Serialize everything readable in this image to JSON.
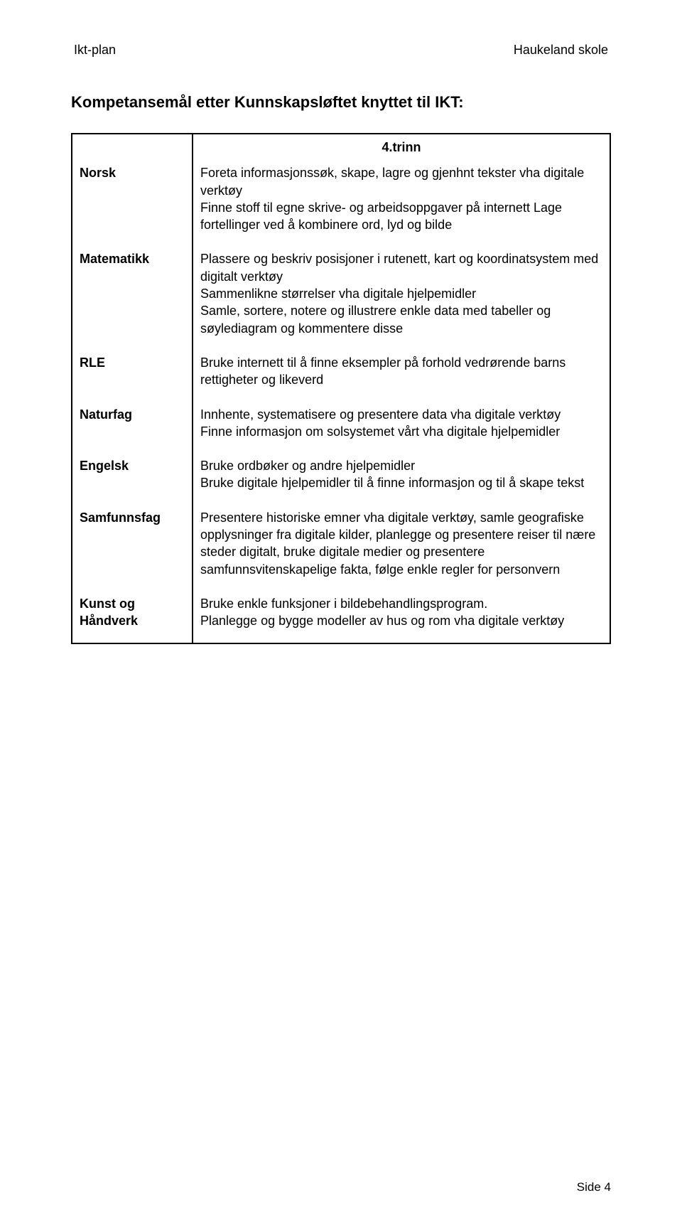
{
  "header": {
    "left": "Ikt-plan",
    "right": "Haukeland skole"
  },
  "section_title": "Kompetansemål etter Kunnskapsløftet knyttet til IKT:",
  "trinn_label": "4.trinn",
  "rows": [
    {
      "label": "Norsk",
      "content": "Foreta informasjonssøk, skape, lagre og gjenhnt tekster vha digitale verktøy\nFinne stoff til egne skrive- og arbeidsoppgaver på internett Lage fortellinger ved å kombinere ord, lyd og bilde"
    },
    {
      "label": "Matematikk",
      "content": "Plassere og beskriv posisjoner i rutenett, kart og koordinatsystem med digitalt verktøy\nSammenlikne størrelser vha digitale hjelpemidler\nSamle, sortere, notere og illustrere enkle data med tabeller og søylediagram og kommentere disse"
    },
    {
      "label": "RLE",
      "content": "Bruke internett til å finne eksempler på forhold vedrørende barns rettigheter og likeverd"
    },
    {
      "label": "Naturfag",
      "content": "Innhente, systematisere og presentere data vha digitale verktøy\nFinne informasjon om solsystemet vårt vha digitale hjelpemidler"
    },
    {
      "label": "Engelsk",
      "content": "Bruke ordbøker og andre hjelpemidler\nBruke digitale hjelpemidler til å finne informasjon og til å skape tekst"
    },
    {
      "label": "Samfunnsfag",
      "content": "Presentere historiske emner vha digitale verktøy, samle geografiske opplysninger fra digitale kilder, planlegge og presentere reiser til nære steder digitalt, bruke digitale medier og presentere samfunnsvitenskapelige fakta, følge enkle regler for personvern"
    },
    {
      "label": "Kunst og Håndverk",
      "content": "Bruke enkle funksjoner i bildebehandlingsprogram.\nPlanlegge og bygge modeller av hus og rom vha digitale verktøy"
    }
  ],
  "footer": "Side 4",
  "colors": {
    "text": "#000000",
    "background": "#ffffff",
    "border": "#000000"
  },
  "fonts": {
    "body_family": "Arial, Helvetica, sans-serif",
    "body_size": 18,
    "title_size": 22,
    "trinn_size": 22
  }
}
